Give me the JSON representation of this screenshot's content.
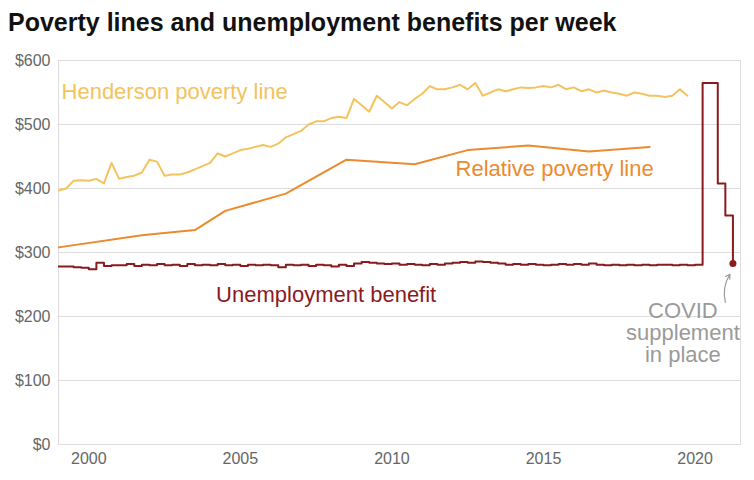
{
  "chart_data": {
    "type": "line",
    "title": "Poverty lines and unemployment benefits per week",
    "xlim": [
      1999,
      2021.5
    ],
    "xticks": [
      2000,
      2005,
      2010,
      2015,
      2020
    ],
    "ylim": [
      0,
      600
    ],
    "yticks": [
      {
        "value": 0,
        "label": "$0"
      },
      {
        "value": 100,
        "label": "$100"
      },
      {
        "value": 200,
        "label": "$200"
      },
      {
        "value": 300,
        "label": "$300"
      },
      {
        "value": 400,
        "label": "$400"
      },
      {
        "value": 500,
        "label": "$500"
      },
      {
        "value": 600,
        "label": "$600"
      }
    ],
    "grid": true,
    "series": [
      {
        "name": "Henderson poverty line",
        "color": "#f2c35e",
        "line_style": "solid",
        "x": [
          1999,
          1999.25,
          1999.5,
          1999.75,
          2000,
          2000.25,
          2000.5,
          2000.75,
          2001,
          2001.25,
          2001.5,
          2001.75,
          2002,
          2002.25,
          2002.5,
          2002.75,
          2003,
          2003.25,
          2003.5,
          2003.75,
          2004,
          2004.25,
          2004.5,
          2004.75,
          2005,
          2005.25,
          2005.5,
          2005.75,
          2006,
          2006.25,
          2006.5,
          2006.75,
          2007,
          2007.25,
          2007.5,
          2007.75,
          2008,
          2008.25,
          2008.5,
          2008.75,
          2009,
          2009.25,
          2009.5,
          2009.75,
          2010,
          2010.25,
          2010.5,
          2010.75,
          2011,
          2011.25,
          2011.5,
          2011.75,
          2012,
          2012.25,
          2012.5,
          2012.75,
          2013,
          2013.25,
          2013.5,
          2013.75,
          2014,
          2014.25,
          2014.5,
          2014.75,
          2015,
          2015.25,
          2015.5,
          2015.75,
          2016,
          2016.25,
          2016.5,
          2016.75,
          2017,
          2017.25,
          2017.5,
          2017.75,
          2018,
          2018.25,
          2018.5,
          2018.75,
          2019,
          2019.25,
          2019.5,
          2019.75
        ],
        "values": [
          397,
          400,
          412,
          413,
          412,
          415,
          408,
          440,
          415,
          418,
          420,
          425,
          445,
          442,
          420,
          422,
          422,
          425,
          430,
          435,
          440,
          455,
          450,
          455,
          460,
          462,
          465,
          468,
          465,
          470,
          480,
          485,
          490,
          500,
          505,
          505,
          510,
          512,
          510,
          540,
          530,
          520,
          545,
          535,
          525,
          535,
          530,
          540,
          548,
          560,
          555,
          555,
          558,
          562,
          555,
          565,
          545,
          550,
          555,
          552,
          555,
          558,
          557,
          558,
          560,
          558,
          562,
          555,
          558,
          552,
          555,
          550,
          553,
          550,
          548,
          545,
          550,
          548,
          545,
          545,
          543,
          545,
          555,
          545
        ]
      },
      {
        "name": "Relative poverty line",
        "color": "#ec8a2e",
        "line_style": "solid",
        "x": [
          1999,
          2001.75,
          2003.5,
          2004.5,
          2006.5,
          2008.5,
          2010.75,
          2012.5,
          2014.5,
          2016.5,
          2018.5
        ],
        "values": [
          308,
          327,
          335,
          365,
          392,
          445,
          438,
          460,
          467,
          458,
          465
        ]
      },
      {
        "name": "Unemployment benefit",
        "color": "#8b1a1f",
        "line_style": "step",
        "marker": "last",
        "x": [
          1999,
          1999.25,
          1999.5,
          1999.75,
          2000,
          2000.25,
          2000.5,
          2000.75,
          2001,
          2001.25,
          2001.5,
          2001.75,
          2002,
          2002.25,
          2002.5,
          2002.75,
          2003,
          2003.25,
          2003.5,
          2003.75,
          2004,
          2004.25,
          2004.5,
          2004.75,
          2005,
          2005.25,
          2005.5,
          2005.75,
          2006,
          2006.25,
          2006.5,
          2006.75,
          2007,
          2007.25,
          2007.5,
          2007.75,
          2008,
          2008.25,
          2008.5,
          2008.75,
          2009,
          2009.25,
          2009.5,
          2009.75,
          2010,
          2010.25,
          2010.5,
          2010.75,
          2011,
          2011.25,
          2011.5,
          2011.75,
          2012,
          2012.25,
          2012.5,
          2012.75,
          2013,
          2013.25,
          2013.5,
          2013.75,
          2014,
          2014.25,
          2014.5,
          2014.75,
          2015,
          2015.25,
          2015.5,
          2015.75,
          2016,
          2016.25,
          2016.5,
          2016.75,
          2017,
          2017.25,
          2017.5,
          2017.75,
          2018,
          2018.25,
          2018.5,
          2018.75,
          2019,
          2019.25,
          2019.5,
          2019.75,
          2020,
          2020.25,
          2020.5,
          2020.75,
          2021,
          2021.25
        ],
        "values": [
          278,
          278,
          277,
          276,
          274,
          284,
          279,
          280,
          280,
          282,
          279,
          281,
          280,
          282,
          280,
          281,
          279,
          282,
          280,
          281,
          280,
          282,
          280,
          281,
          279,
          281,
          280,
          281,
          280,
          277,
          281,
          280,
          281,
          279,
          281,
          280,
          278,
          281,
          279,
          283,
          285,
          284,
          283,
          282,
          283,
          281,
          282,
          281,
          280,
          282,
          281,
          283,
          284,
          285,
          284,
          286,
          285,
          284,
          283,
          281,
          282,
          281,
          282,
          281,
          280,
          281,
          282,
          281,
          282,
          281,
          283,
          281,
          280,
          281,
          280,
          281,
          280,
          281,
          280,
          281,
          281,
          280,
          281,
          280,
          281,
          565,
          565,
          408,
          358,
          283
        ]
      }
    ],
    "annotations": [
      {
        "text": "COVID supplement in place"
      }
    ]
  }
}
